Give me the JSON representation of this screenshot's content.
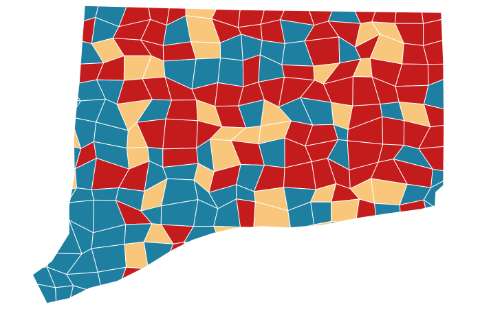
{
  "map": {
    "colors": [
      "#c41c1c",
      "#1f7fa0",
      "#f9c77c"
    ]
  }
}
